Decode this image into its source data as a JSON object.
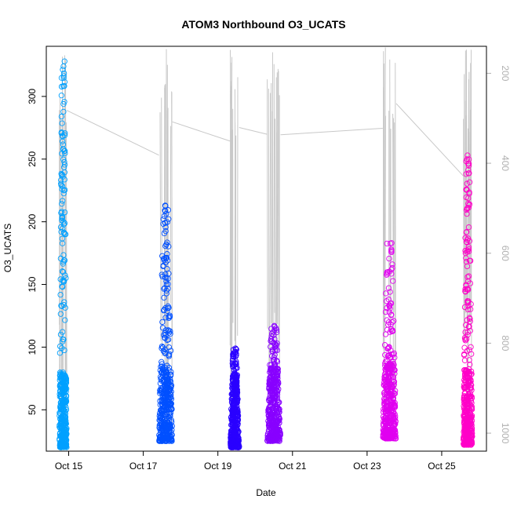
{
  "chart_data": {
    "type": "scatter",
    "title": "ATOM3 Northbound O3_UCATS",
    "xlabel": "Date",
    "ylabel": "O3_UCATS",
    "x_ticks": [
      "Oct 15",
      "Oct 17",
      "Oct 19",
      "Oct 21",
      "Oct 23",
      "Oct 25"
    ],
    "x_tick_days": [
      15,
      17,
      19,
      21,
      23,
      25
    ],
    "xlim": [
      14.4,
      26.2
    ],
    "ylim": [
      17,
      340
    ],
    "y_ticks": [
      50,
      100,
      150,
      200,
      250,
      300
    ],
    "y2_ticks": [
      200,
      400,
      600,
      800,
      1000
    ],
    "y2lim": [
      1040,
      140
    ],
    "y2_color": "#b0b0b0",
    "pressure_line_color": "#c8c8c8",
    "series": [
      {
        "day_center": 14.85,
        "day_spread": 0.1,
        "ymin": 20,
        "ymax": 328,
        "color": "#00a0ff"
      },
      {
        "day_center": 17.6,
        "day_spread": 0.18,
        "ymin": 25,
        "ymax": 213,
        "color": "#0050ff"
      },
      {
        "day_center": 19.45,
        "day_spread": 0.12,
        "ymin": 20,
        "ymax": 99,
        "color": "#2a00ff"
      },
      {
        "day_center": 20.5,
        "day_spread": 0.18,
        "ymin": 25,
        "ymax": 117,
        "color": "#8800ff"
      },
      {
        "day_center": 23.6,
        "day_spread": 0.18,
        "ymin": 27,
        "ymax": 183,
        "color": "#e000f0"
      },
      {
        "day_center": 25.7,
        "day_spread": 0.12,
        "ymin": 22,
        "ymax": 253,
        "color": "#ff00c8"
      }
    ]
  }
}
